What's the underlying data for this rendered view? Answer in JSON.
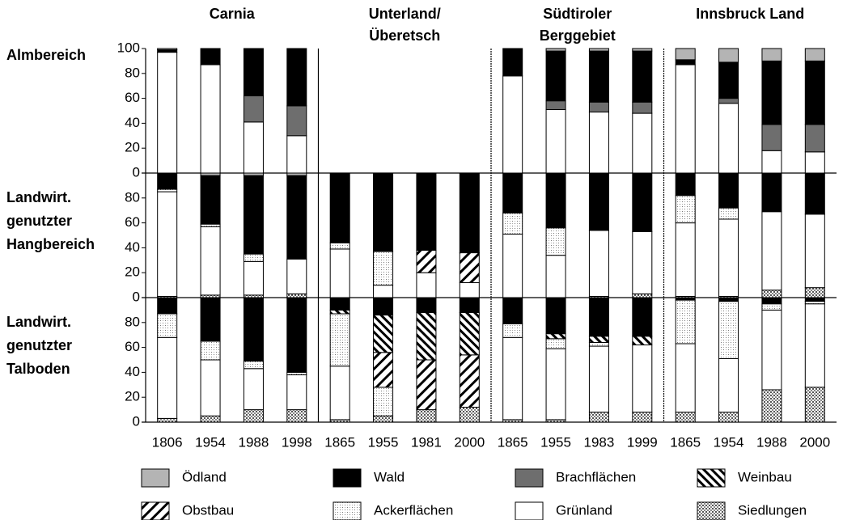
{
  "chart_data": {
    "type": "bar",
    "stacked": true,
    "ylim": [
      0,
      100
    ],
    "yticks": [
      0,
      20,
      40,
      60,
      80,
      100
    ],
    "row_titles": [
      [
        "Almbereich"
      ],
      [
        "Landwirt.",
        "genutzter",
        "Hangbereich"
      ],
      [
        "Landwirt.",
        "genutzter",
        "Talboden"
      ]
    ],
    "series": [
      {
        "name": "Siedlungen",
        "color": "#ffffff",
        "pattern": "dots"
      },
      {
        "name": "Grünland",
        "color": "#ffffff"
      },
      {
        "name": "Ackerflächen",
        "color": "#ffffff",
        "pattern": "stipple"
      },
      {
        "name": "Obstbau",
        "color": "#ffffff",
        "pattern": "hatch-forward"
      },
      {
        "name": "Weinbau",
        "color": "#ffffff",
        "pattern": "hatch-back"
      },
      {
        "name": "Brachflächen",
        "color": "#6e6e6e"
      },
      {
        "name": "Wald",
        "color": "#000000"
      },
      {
        "name": "Ödland",
        "color": "#b4b4b4"
      }
    ],
    "columns": [
      {
        "title": [
          "Carnia"
        ],
        "categories": [
          "1806",
          "1954",
          "1988",
          "1998"
        ],
        "panels": [
          [
            [
              0,
              0,
              0,
              0
            ],
            [
              97,
              87,
              41,
              30
            ],
            [
              0,
              0,
              0,
              0
            ],
            [
              0,
              0,
              0,
              0
            ],
            [
              0,
              0,
              0,
              0
            ],
            [
              0,
              0,
              21,
              24
            ],
            [
              2,
              13,
              38,
              46
            ],
            [
              1,
              0,
              0,
              0
            ]
          ],
          [
            [
              1,
              2,
              2,
              3
            ],
            [
              84,
              55,
              27,
              28
            ],
            [
              2,
              2,
              6,
              0
            ],
            [
              0,
              0,
              0,
              0
            ],
            [
              0,
              0,
              0,
              0
            ],
            [
              0,
              0,
              0,
              0
            ],
            [
              13,
              39,
              63,
              67
            ],
            [
              0,
              2,
              2,
              2
            ]
          ],
          [
            [
              3,
              5,
              10,
              10
            ],
            [
              65,
              45,
              33,
              28
            ],
            [
              19,
              15,
              6,
              2
            ],
            [
              0,
              0,
              0,
              0
            ],
            [
              0,
              0,
              0,
              0
            ],
            [
              0,
              0,
              0,
              0
            ],
            [
              13,
              35,
              51,
              60
            ],
            [
              0,
              0,
              0,
              0
            ]
          ]
        ]
      },
      {
        "title": [
          "Unterland/",
          "Überetsch"
        ],
        "categories": [
          "1865",
          "1955",
          "1981",
          "2000"
        ],
        "panels": [
          null,
          [
            [
              0,
              0,
              0,
              0
            ],
            [
              39,
              10,
              20,
              12
            ],
            [
              5,
              27,
              0,
              0
            ],
            [
              0,
              0,
              18,
              24
            ],
            [
              0,
              0,
              0,
              0
            ],
            [
              0,
              0,
              0,
              0
            ],
            [
              56,
              63,
              62,
              64
            ],
            [
              0,
              0,
              0,
              0
            ]
          ],
          [
            [
              2,
              5,
              10,
              12
            ],
            [
              43,
              0,
              0,
              0
            ],
            [
              42,
              23,
              0,
              0
            ],
            [
              0,
              28,
              40,
              42
            ],
            [
              3,
              30,
              38,
              34
            ],
            [
              0,
              0,
              0,
              0
            ],
            [
              10,
              14,
              12,
              12
            ],
            [
              0,
              0,
              0,
              0
            ]
          ]
        ]
      },
      {
        "title": [
          "Südtiroler",
          "Berggebiet"
        ],
        "categories": [
          "1865",
          "1955",
          "1983",
          "1999"
        ],
        "panels": [
          [
            [
              0,
              0,
              0,
              0
            ],
            [
              78,
              51,
              49,
              48
            ],
            [
              0,
              0,
              0,
              0
            ],
            [
              0,
              0,
              0,
              0
            ],
            [
              0,
              0,
              0,
              0
            ],
            [
              0,
              7,
              8,
              9
            ],
            [
              22,
              40,
              41,
              41
            ],
            [
              0,
              2,
              2,
              2
            ]
          ],
          [
            [
              0,
              0,
              1,
              3
            ],
            [
              51,
              34,
              53,
              50
            ],
            [
              17,
              22,
              0,
              0
            ],
            [
              0,
              0,
              0,
              0
            ],
            [
              0,
              0,
              0,
              0
            ],
            [
              0,
              0,
              0,
              0
            ],
            [
              32,
              44,
              46,
              47
            ],
            [
              0,
              0,
              0,
              0
            ]
          ],
          [
            [
              2,
              2,
              8,
              8
            ],
            [
              66,
              57,
              53,
              54
            ],
            [
              11,
              8,
              3,
              0
            ],
            [
              0,
              0,
              0,
              0
            ],
            [
              0,
              4,
              5,
              7
            ],
            [
              0,
              0,
              0,
              0
            ],
            [
              21,
              29,
              31,
              31
            ],
            [
              0,
              0,
              0,
              0
            ]
          ]
        ]
      },
      {
        "title": [
          "Innsbruck Land"
        ],
        "categories": [
          "1865",
          "1954",
          "1988",
          "2000"
        ],
        "panels": [
          [
            [
              0,
              0,
              0,
              0
            ],
            [
              87,
              56,
              18,
              17
            ],
            [
              0,
              0,
              0,
              0
            ],
            [
              0,
              0,
              0,
              0
            ],
            [
              0,
              0,
              0,
              0
            ],
            [
              0,
              4,
              21,
              22
            ],
            [
              4,
              29,
              51,
              51
            ],
            [
              9,
              11,
              10,
              10
            ]
          ],
          [
            [
              1,
              1,
              6,
              8
            ],
            [
              59,
              62,
              63,
              59
            ],
            [
              22,
              9,
              0,
              0
            ],
            [
              0,
              0,
              0,
              0
            ],
            [
              0,
              0,
              0,
              0
            ],
            [
              0,
              0,
              0,
              0
            ],
            [
              18,
              28,
              31,
              33
            ],
            [
              0,
              0,
              0,
              0
            ]
          ],
          [
            [
              8,
              8,
              26,
              28
            ],
            [
              55,
              43,
              64,
              67
            ],
            [
              35,
              46,
              5,
              2
            ],
            [
              0,
              0,
              0,
              0
            ],
            [
              0,
              0,
              0,
              0
            ],
            [
              0,
              0,
              0,
              0
            ],
            [
              2,
              3,
              5,
              3
            ],
            [
              0,
              0,
              0,
              0
            ]
          ]
        ]
      }
    ]
  }
}
